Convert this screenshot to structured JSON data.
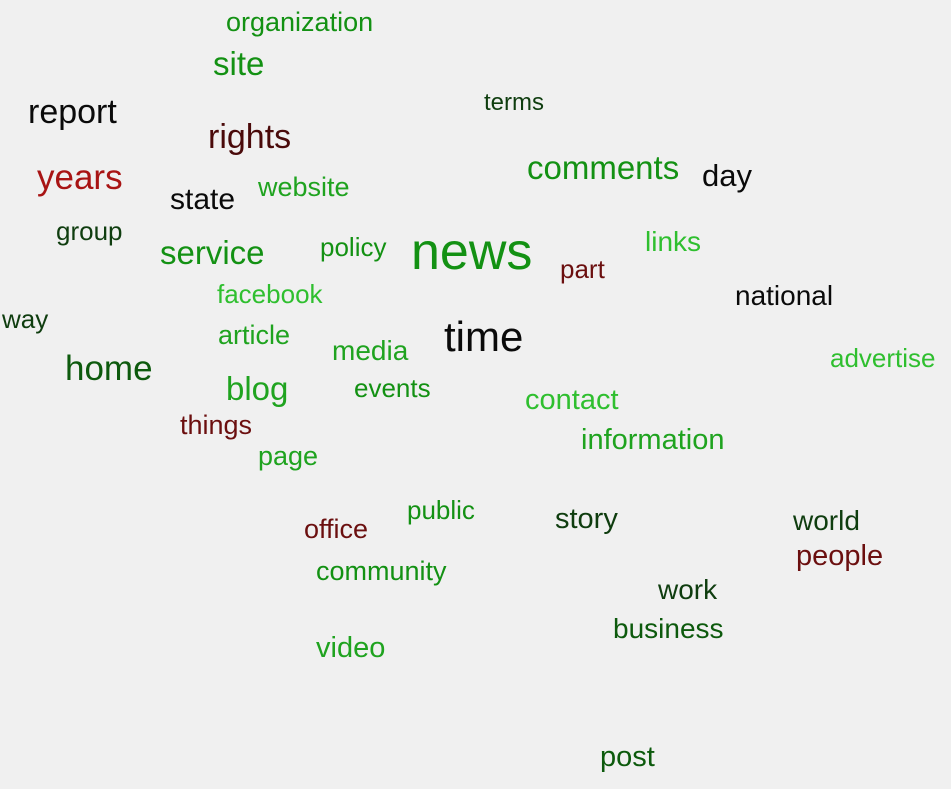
{
  "words": {
    "organization": "organization",
    "site": "site",
    "report": "report",
    "terms": "terms",
    "rights": "rights",
    "comments": "comments",
    "day": "day",
    "years": "years",
    "state": "state",
    "website": "website",
    "group": "group",
    "service": "service",
    "policy": "policy",
    "news": "news",
    "links": "links",
    "part": "part",
    "facebook": "facebook",
    "national": "national",
    "way": "way",
    "time": "time",
    "article": "article",
    "media": "media",
    "home": "home",
    "advertise": "advertise",
    "blog": "blog",
    "events": "events",
    "contact": "contact",
    "things": "things",
    "information": "information",
    "page": "page",
    "public": "public",
    "story": "story",
    "world": "world",
    "office": "office",
    "people": "people",
    "community": "community",
    "work": "work",
    "business": "business",
    "video": "video",
    "post": "post"
  },
  "colors": {
    "background": "#f0f0f0",
    "dark_green": "#0d5a0d",
    "green": "#139113",
    "mid_green": "#1fa31f",
    "light_green": "#2fbf2f",
    "black": "#0a0a0a",
    "dark_red": "#6b0f0f",
    "red": "#a81414"
  }
}
